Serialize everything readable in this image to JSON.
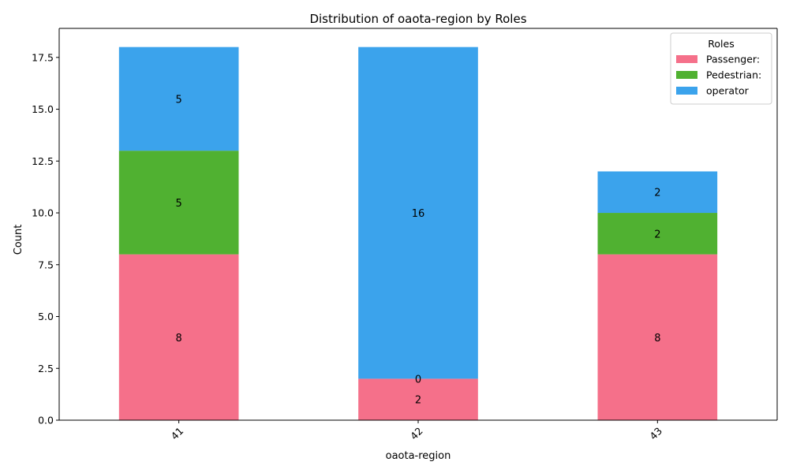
{
  "chart_data": {
    "type": "bar",
    "stacked": true,
    "title": "Distribution of oaota-region by Roles",
    "xlabel": "oaota-region",
    "ylabel": "Count",
    "categories": [
      "41",
      "42",
      "43"
    ],
    "series": [
      {
        "name": "Passenger:",
        "color": "#f5708a",
        "values": [
          8,
          2,
          8
        ]
      },
      {
        "name": "Pedestrian:",
        "color": "#50b131",
        "values": [
          5,
          0,
          2
        ]
      },
      {
        "name": "operator",
        "color": "#3ba3ec",
        "values": [
          5,
          16,
          2
        ]
      }
    ],
    "ylim": [
      0,
      18.9
    ],
    "yticks": [
      "0.0",
      "2.5",
      "5.0",
      "7.5",
      "10.0",
      "12.5",
      "15.0",
      "17.5"
    ],
    "legend": {
      "title": "Roles",
      "placement": "top-right"
    },
    "grid": false
  }
}
